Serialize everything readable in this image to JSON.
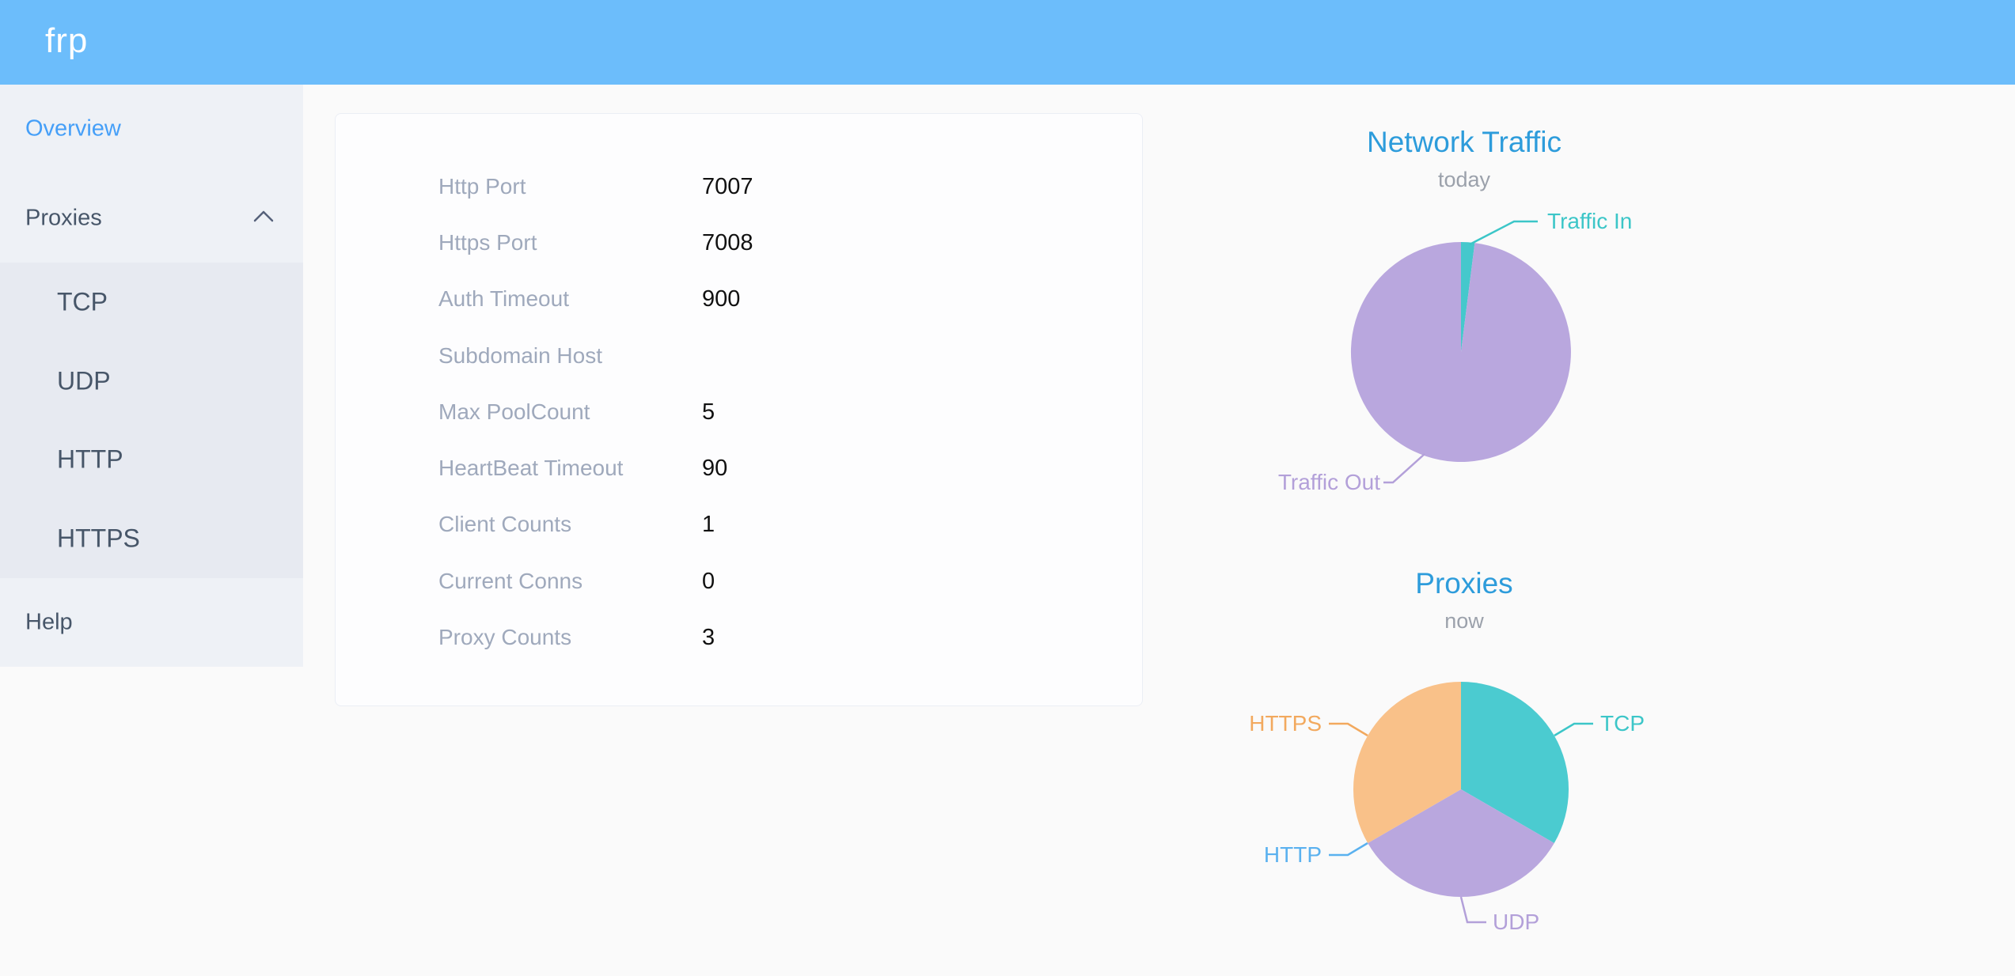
{
  "header": {
    "logo_text": "frp"
  },
  "sidebar": {
    "items": [
      {
        "label": "Overview",
        "active": true
      },
      {
        "label": "Proxies",
        "expanded": true
      }
    ],
    "proxy_submenu": [
      {
        "label": "TCP"
      },
      {
        "label": "UDP"
      },
      {
        "label": "HTTP"
      },
      {
        "label": "HTTPS"
      }
    ],
    "help": {
      "label": "Help"
    }
  },
  "card": {
    "rows": [
      {
        "label": "Http Port",
        "value": "7007"
      },
      {
        "label": "Https Port",
        "value": "7008"
      },
      {
        "label": "Auth Timeout",
        "value": "900"
      },
      {
        "label": "Subdomain Host",
        "value": ""
      },
      {
        "label": "Max PoolCount",
        "value": "5"
      },
      {
        "label": "HeartBeat Timeout",
        "value": "90"
      },
      {
        "label": "Client Counts",
        "value": "1"
      },
      {
        "label": "Current Conns",
        "value": "0"
      },
      {
        "label": "Proxy Counts",
        "value": "3"
      }
    ]
  },
  "chart_data": [
    {
      "type": "pie",
      "title": "Network Traffic",
      "subtitle": "today",
      "legend_position": "none",
      "values_are_estimated_percent": true,
      "series": [
        {
          "name": "Traffic In",
          "value": 2,
          "color": "#45c8cc",
          "label_color": "#3cc6c8"
        },
        {
          "name": "Traffic Out",
          "value": 98,
          "color": "#b9a7de",
          "label_color": "#b3a0d9"
        }
      ]
    },
    {
      "type": "pie",
      "title": "Proxies",
      "subtitle": "now",
      "legend_position": "none",
      "series": [
        {
          "name": "TCP",
          "value": 1,
          "color": "#4bcbd0",
          "label_color": "#3cc6c8"
        },
        {
          "name": "UDP",
          "value": 1,
          "color": "#b9a7de",
          "label_color": "#b3a0d9"
        },
        {
          "name": "HTTP",
          "value": 0,
          "color": "#5ab1ef",
          "label_color": "#5ab1ef"
        },
        {
          "name": "HTTPS",
          "value": 1,
          "color": "#f9c189",
          "label_color": "#f2a95e"
        }
      ]
    }
  ],
  "colors": {
    "header_bg": "#6cbdfb",
    "sidebar_bg": "#eef1f6",
    "submenu_bg": "#e7eaf1",
    "active_menu": "#459ff8",
    "menu_text": "#475669",
    "chart_title": "#2d9cdb",
    "chart_subtitle": "#9ba1ab",
    "card_label": "#9fa9bc",
    "card_value": "#111111"
  }
}
